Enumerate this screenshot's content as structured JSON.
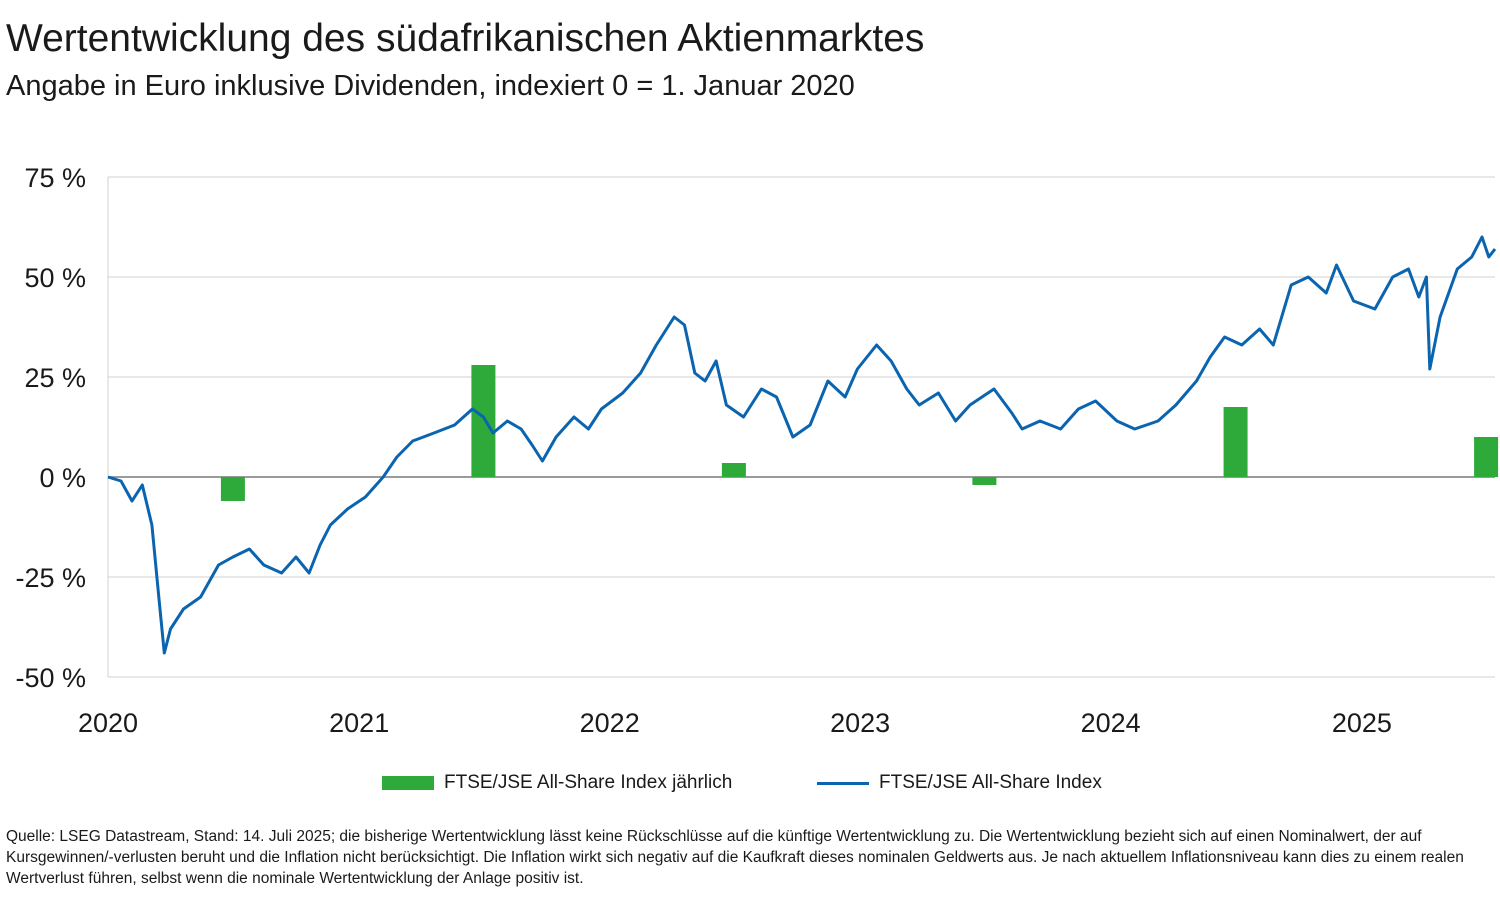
{
  "title": "Wertentwicklung des südafrikanischen Aktienmarktes",
  "subtitle": "Angabe in Euro inklusive Dividenden, indexiert 0 = 1. Januar 2020",
  "colors": {
    "bar": "#2eaa3a",
    "line": "#0a64b0",
    "grid": "#d0d0d0",
    "zero": "#9a9a9a"
  },
  "chart_data": {
    "type": "bar+line",
    "title": "Wertentwicklung des südafrikanischen Aktienmarktes",
    "ylim": [
      -50,
      75
    ],
    "yticks": [
      75,
      50,
      25,
      0,
      -25,
      -50
    ],
    "ytick_labels": [
      "75 %",
      "50 %",
      "25 %",
      "0 %",
      "-25 %",
      "-50 %"
    ],
    "xlim": [
      "2020-01-01",
      "2025-07-14"
    ],
    "xtick_labels": [
      "2020",
      "2021",
      "2022",
      "2023",
      "2024",
      "2025"
    ],
    "xtick_dates": [
      "2020-01-01",
      "2021-01-01",
      "2022-01-01",
      "2023-01-01",
      "2024-01-01",
      "2025-01-01"
    ],
    "grid": true,
    "legend_position": "bottom",
    "series": [
      {
        "name": "FTSE/JSE All-Share Index jährlich",
        "type": "bar",
        "color": "#2eaa3a",
        "categories": [
          "2020",
          "2021",
          "2022",
          "2023",
          "2024",
          "2025"
        ],
        "values": [
          -6,
          28,
          3.5,
          -2,
          17.5,
          10
        ]
      },
      {
        "name": "FTSE/JSE All-Share Index",
        "type": "line",
        "color": "#0a64b0",
        "points": [
          [
            "2020-01-01",
            0
          ],
          [
            "2020-01-20",
            -1
          ],
          [
            "2020-02-05",
            -6
          ],
          [
            "2020-02-20",
            -2
          ],
          [
            "2020-03-05",
            -12
          ],
          [
            "2020-03-15",
            -30
          ],
          [
            "2020-03-23",
            -44
          ],
          [
            "2020-04-01",
            -38
          ],
          [
            "2020-04-20",
            -33
          ],
          [
            "2020-05-15",
            -30
          ],
          [
            "2020-06-10",
            -22
          ],
          [
            "2020-07-01",
            -20
          ],
          [
            "2020-07-25",
            -18
          ],
          [
            "2020-08-15",
            -22
          ],
          [
            "2020-09-10",
            -24
          ],
          [
            "2020-10-01",
            -20
          ],
          [
            "2020-10-20",
            -24
          ],
          [
            "2020-11-05",
            -17
          ],
          [
            "2020-11-20",
            -12
          ],
          [
            "2020-12-15",
            -8
          ],
          [
            "2021-01-10",
            -5
          ],
          [
            "2021-02-05",
            0
          ],
          [
            "2021-02-25",
            5
          ],
          [
            "2021-03-20",
            9
          ],
          [
            "2021-04-20",
            11
          ],
          [
            "2021-05-20",
            13
          ],
          [
            "2021-06-15",
            17
          ],
          [
            "2021-07-01",
            15
          ],
          [
            "2021-07-15",
            11
          ],
          [
            "2021-08-05",
            14
          ],
          [
            "2021-08-25",
            12
          ],
          [
            "2021-09-10",
            8
          ],
          [
            "2021-09-25",
            4
          ],
          [
            "2021-10-15",
            10
          ],
          [
            "2021-11-10",
            15
          ],
          [
            "2021-12-01",
            12
          ],
          [
            "2021-12-20",
            17
          ],
          [
            "2022-01-20",
            21
          ],
          [
            "2022-02-15",
            26
          ],
          [
            "2022-03-10",
            33
          ],
          [
            "2022-04-05",
            40
          ],
          [
            "2022-04-20",
            38
          ],
          [
            "2022-05-05",
            26
          ],
          [
            "2022-05-20",
            24
          ],
          [
            "2022-06-05",
            29
          ],
          [
            "2022-06-20",
            18
          ],
          [
            "2022-07-15",
            15
          ],
          [
            "2022-08-10",
            22
          ],
          [
            "2022-09-01",
            20
          ],
          [
            "2022-09-25",
            10
          ],
          [
            "2022-10-20",
            13
          ],
          [
            "2022-11-15",
            24
          ],
          [
            "2022-12-10",
            20
          ],
          [
            "2022-12-28",
            27
          ],
          [
            "2023-01-25",
            33
          ],
          [
            "2023-02-15",
            29
          ],
          [
            "2023-03-10",
            22
          ],
          [
            "2023-03-28",
            18
          ],
          [
            "2023-04-25",
            21
          ],
          [
            "2023-05-20",
            14
          ],
          [
            "2023-06-10",
            18
          ],
          [
            "2023-07-15",
            22
          ],
          [
            "2023-08-10",
            16
          ],
          [
            "2023-08-25",
            12
          ],
          [
            "2023-09-20",
            14
          ],
          [
            "2023-10-20",
            12
          ],
          [
            "2023-11-15",
            17
          ],
          [
            "2023-12-10",
            19
          ],
          [
            "2024-01-10",
            14
          ],
          [
            "2024-02-05",
            12
          ],
          [
            "2024-03-10",
            14
          ],
          [
            "2024-04-05",
            18
          ],
          [
            "2024-05-05",
            24
          ],
          [
            "2024-05-25",
            30
          ],
          [
            "2024-06-15",
            35
          ],
          [
            "2024-07-10",
            33
          ],
          [
            "2024-08-05",
            37
          ],
          [
            "2024-08-25",
            33
          ],
          [
            "2024-09-20",
            48
          ],
          [
            "2024-10-15",
            50
          ],
          [
            "2024-11-10",
            46
          ],
          [
            "2024-11-25",
            53
          ],
          [
            "2024-12-20",
            44
          ],
          [
            "2025-01-20",
            42
          ],
          [
            "2025-02-15",
            50
          ],
          [
            "2025-03-10",
            52
          ],
          [
            "2025-03-25",
            45
          ],
          [
            "2025-04-05",
            50
          ],
          [
            "2025-04-10",
            27
          ],
          [
            "2025-04-25",
            40
          ],
          [
            "2025-05-20",
            52
          ],
          [
            "2025-06-10",
            55
          ],
          [
            "2025-06-25",
            60
          ],
          [
            "2025-07-05",
            55
          ],
          [
            "2025-07-14",
            57
          ]
        ]
      }
    ]
  },
  "legend": [
    {
      "label": "FTSE/JSE All-Share Index jährlich",
      "kind": "bar"
    },
    {
      "label": "FTSE/JSE All-Share Index",
      "kind": "line"
    }
  ],
  "footnote": "Quelle: LSEG Datastream, Stand: 14. Juli 2025; die bisherige Wertentwicklung lässt keine Rückschlüsse auf die künftige Wertentwicklung zu. Die Wertentwicklung bezieht sich auf einen Nominalwert, der auf Kursgewinnen/-verlusten beruht und die Inflation nicht berücksichtigt. Die Inflation wirkt sich negativ auf die Kaufkraft dieses nominalen Geldwerts aus. Je nach aktuellem Inflationsniveau kann dies zu einem realen Wertverlust führen, selbst wenn die nominale Wertentwicklung der Anlage positiv ist."
}
